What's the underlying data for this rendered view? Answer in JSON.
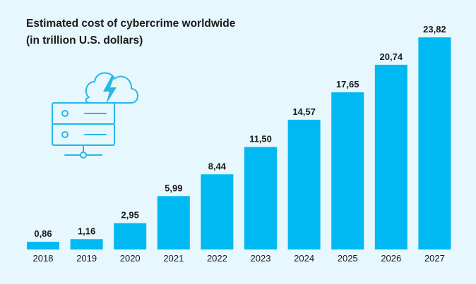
{
  "colors": {
    "background": "#e6f7fd",
    "bar": "#00b9f2",
    "text": "#1a1a1a",
    "icon": "#29b6e8"
  },
  "icons": {
    "illustration": "server-cloud-lightning-icon"
  },
  "chart_data": {
    "type": "bar",
    "title": "Estimated cost of cybercrime worldwide",
    "subtitle": "(in trillion U.S. dollars)",
    "xlabel": "",
    "ylabel": "",
    "categories": [
      "2018",
      "2019",
      "2020",
      "2021",
      "2022",
      "2023",
      "2024",
      "2025",
      "2026",
      "2027"
    ],
    "values": [
      0.86,
      1.16,
      2.95,
      5.99,
      8.44,
      11.5,
      14.57,
      17.65,
      20.74,
      23.82
    ],
    "value_labels": [
      "0,86",
      "1,16",
      "2,95",
      "5,99",
      "8,44",
      "11,50",
      "14,57",
      "17,65",
      "20,74",
      "23,82"
    ],
    "ylim": [
      0,
      23.82
    ],
    "grid": false,
    "legend": "none"
  }
}
